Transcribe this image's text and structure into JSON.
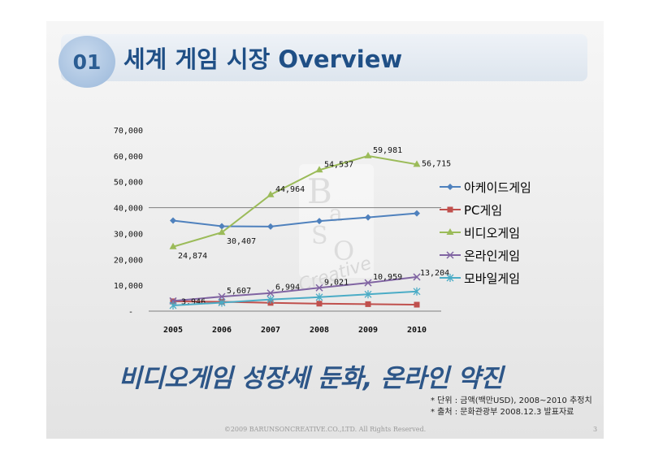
{
  "slide": {
    "section_number": "01",
    "title": "세계 게임 시장 Overview",
    "headline": "비디오게임 성장세 둔화, 온라인 약진",
    "notes": [
      "* 단위 : 금액(백만USD), 2008~2010 추정치",
      "* 출처 : 문화관광부 2008.12.3 발표자료"
    ],
    "copyright": "©2009 BARUNSONCREATIVE.CO.,LTD. All Rights Reserved.",
    "page_number": "3"
  },
  "chart_data": {
    "type": "line",
    "categories": [
      "2005",
      "2006",
      "2007",
      "2008",
      "2009",
      "2010"
    ],
    "ylim": [
      0,
      70000
    ],
    "y_ticks": [
      "-",
      "10,000",
      "20,000",
      "30,000",
      "40,000",
      "50,000",
      "60,000",
      "70,000"
    ],
    "legend_position": "right",
    "series": [
      {
        "name": "아케이드게임",
        "color": "#4f81bd",
        "marker": "diamond",
        "values": [
          35000,
          32800,
          32700,
          34800,
          36200,
          37800
        ],
        "labels": []
      },
      {
        "name": "PC게임",
        "color": "#c0504d",
        "marker": "square",
        "values": [
          3800,
          3600,
          3200,
          2900,
          2700,
          2500
        ],
        "labels": []
      },
      {
        "name": "비디오게임",
        "color": "#9bbb59",
        "marker": "triangle",
        "values": [
          24874,
          30407,
          44964,
          54537,
          59981,
          56715
        ],
        "labels": [
          "24,874",
          "30,407",
          "44,964",
          "54,537",
          "59,981",
          "56,715"
        ]
      },
      {
        "name": "온라인게임",
        "color": "#8064a2",
        "marker": "x",
        "values": [
          3946,
          5607,
          6994,
          9021,
          10959,
          13204
        ],
        "labels": [
          "3,946",
          "5,607",
          "6,994",
          "9,021",
          "10,959",
          "13,204"
        ]
      },
      {
        "name": "모바일게임",
        "color": "#4bacc6",
        "marker": "star",
        "values": [
          2200,
          3300,
          4500,
          5400,
          6500,
          7600
        ],
        "labels": []
      }
    ]
  }
}
